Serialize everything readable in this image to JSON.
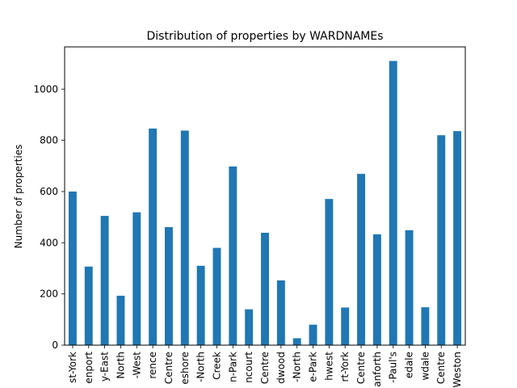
{
  "chart_data": {
    "type": "bar",
    "title": "Distribution of properties by WARDNAMEs",
    "xlabel": "",
    "ylabel": "Number of properties",
    "categories": [
      "st-York",
      "enport",
      "y-East",
      "North",
      "-West",
      "rence",
      "Centre",
      "eshore",
      "-North",
      "Creek",
      "n-Park",
      "ncourt",
      "Centre",
      "dwood",
      "-North",
      "e-Park",
      "hwest",
      "rt-York",
      "Centre",
      "anforth",
      "-Paul's",
      "edale",
      "wdale",
      "Centre",
      "Weston"
    ],
    "values": [
      600,
      307,
      505,
      193,
      519,
      846,
      461,
      838,
      310,
      380,
      698,
      140,
      439,
      253,
      27,
      80,
      571,
      147,
      669,
      433,
      1110,
      449,
      148,
      820,
      836
    ],
    "ylim": [
      0,
      1165
    ],
    "yticks": [
      0,
      200,
      400,
      600,
      800,
      1000
    ],
    "grid": false,
    "legend": "none",
    "bar_color": "#1f77b4"
  }
}
